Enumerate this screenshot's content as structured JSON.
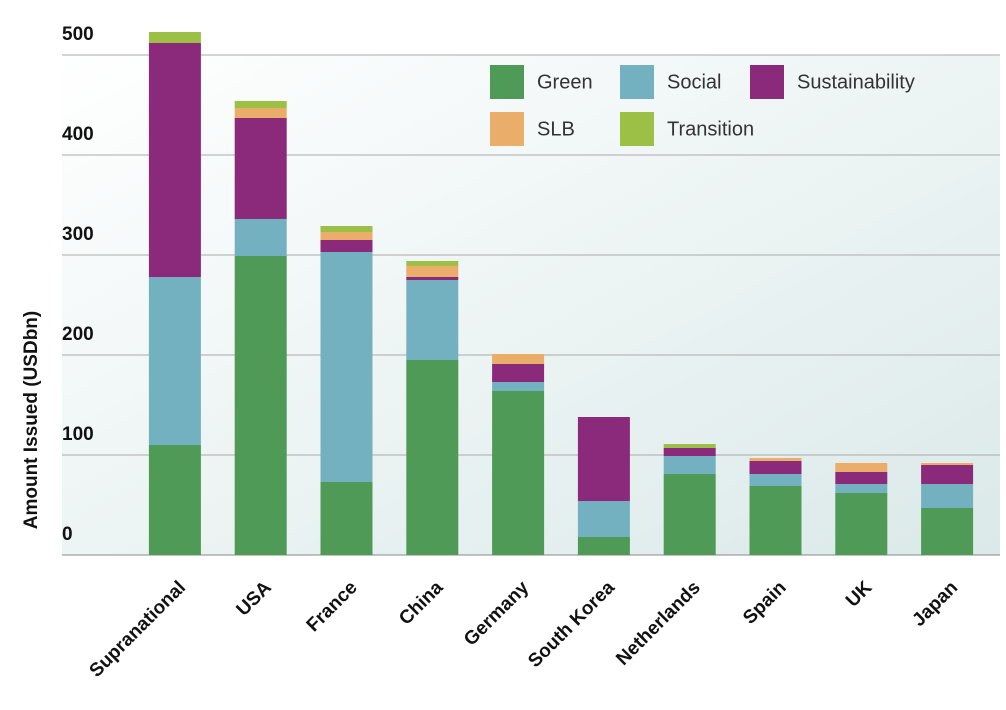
{
  "chart_data": {
    "type": "stacked_bar",
    "y_label": "Amount Issued (USDbn)",
    "categories": [
      "Supranational",
      "USA",
      "France",
      "China",
      "Germany",
      "South Korea",
      "Netherlands",
      "Spain",
      "UK",
      "Japan"
    ],
    "series": [
      {
        "name": "Green",
        "color": "#4e9a56",
        "values": [
          110,
          299,
          73,
          195,
          164,
          18,
          81,
          69,
          62,
          47
        ]
      },
      {
        "name": "Social",
        "color": "#74b1c0",
        "values": [
          168,
          37,
          230,
          80,
          9,
          36,
          18,
          12,
          9,
          24
        ]
      },
      {
        "name": "Sustainability",
        "color": "#8b2a7b",
        "values": [
          234,
          101,
          12,
          3,
          18,
          84,
          8,
          13,
          12,
          19
        ]
      },
      {
        "name": "SLB",
        "color": "#eaad6a",
        "values": [
          0,
          10,
          8,
          11,
          10,
          0,
          0,
          3,
          9,
          2
        ]
      },
      {
        "name": "Transition",
        "color": "#9cbf45",
        "values": [
          11,
          7,
          6,
          5,
          0,
          0,
          4,
          0,
          0,
          0
        ]
      }
    ],
    "ylim": [
      0,
      500
    ],
    "yticks": [
      0,
      100,
      200,
      300,
      400,
      500
    ],
    "grid": true
  }
}
